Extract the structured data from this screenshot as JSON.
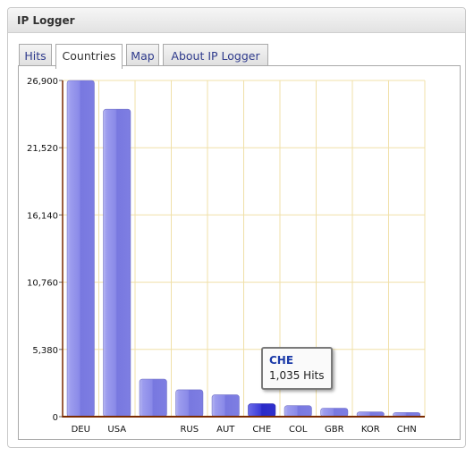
{
  "app": {
    "title": "IP Logger"
  },
  "tabs": [
    {
      "label": "Hits",
      "active": false
    },
    {
      "label": "Countries",
      "active": true
    },
    {
      "label": "Map",
      "active": false
    },
    {
      "label": "About IP Logger",
      "active": false
    }
  ],
  "tooltip": {
    "title": "CHE",
    "value": "1,035 Hits"
  },
  "colors": {
    "bar": "#8484e6",
    "bar_highlight": "#3b3bd6",
    "grid": "#f0e0a8",
    "axis": "#7a2a00"
  },
  "chart_data": {
    "type": "bar",
    "title": "",
    "xlabel": "",
    "ylabel": "",
    "categories": [
      "DEU",
      "USA",
      "",
      "RUS",
      "AUT",
      "CHE",
      "COL",
      "GBR",
      "KOR",
      "CHN"
    ],
    "values": [
      26900,
      24600,
      3000,
      2150,
      1750,
      1035,
      880,
      680,
      380,
      330
    ],
    "highlighted": "CHE",
    "yticks": [
      0,
      5380,
      10760,
      16140,
      21520,
      26900
    ],
    "ytick_labels": [
      "0",
      "5,380",
      "10,760",
      "16,140",
      "21,520",
      "26,900"
    ],
    "ylim": [
      0,
      26900
    ],
    "grid": true
  }
}
